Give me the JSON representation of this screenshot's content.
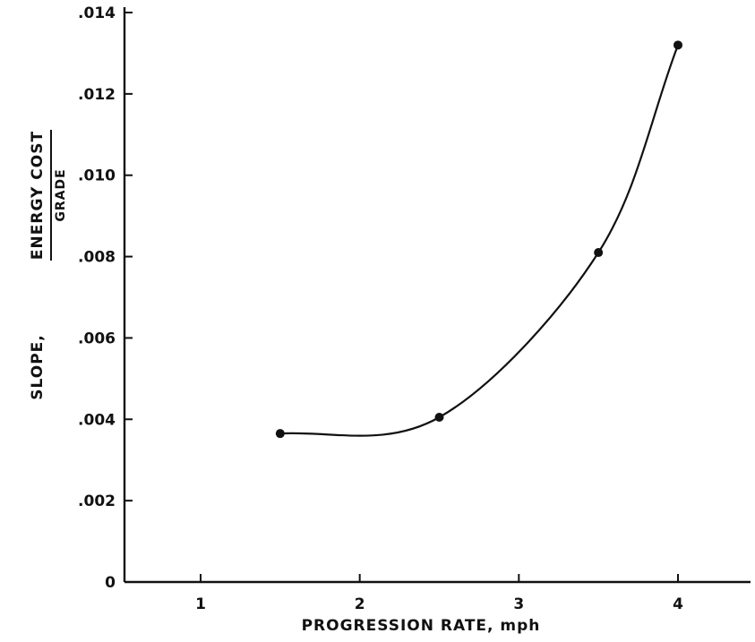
{
  "chart_data": {
    "type": "line",
    "title": "",
    "xlabel": "PROGRESSION RATE, mph",
    "ylabel": {
      "prefix": "SLOPE,",
      "numerator": "ENERGY COST",
      "denominator": "GRADE"
    },
    "xlim": [
      0,
      4.5
    ],
    "ylim": [
      0,
      0.014
    ],
    "x_ticks": [
      {
        "value": 1,
        "label": "1"
      },
      {
        "value": 2,
        "label": "2"
      },
      {
        "value": 3,
        "label": "3"
      },
      {
        "value": 4,
        "label": "4"
      }
    ],
    "y_ticks": [
      {
        "value": 0,
        "label": "0"
      },
      {
        "value": 0.002,
        "label": ".002"
      },
      {
        "value": 0.004,
        "label": ".004"
      },
      {
        "value": 0.006,
        "label": ".006"
      },
      {
        "value": 0.008,
        "label": ".008"
      },
      {
        "value": 0.01,
        "label": ".010"
      },
      {
        "value": 0.012,
        "label": ".012"
      },
      {
        "value": 0.014,
        "label": ".014"
      }
    ],
    "grid": false,
    "series": [
      {
        "x": [
          1.5,
          2.5,
          3.5,
          4.0
        ],
        "y": [
          0.00365,
          0.00405,
          0.0081,
          0.0132
        ]
      }
    ]
  }
}
